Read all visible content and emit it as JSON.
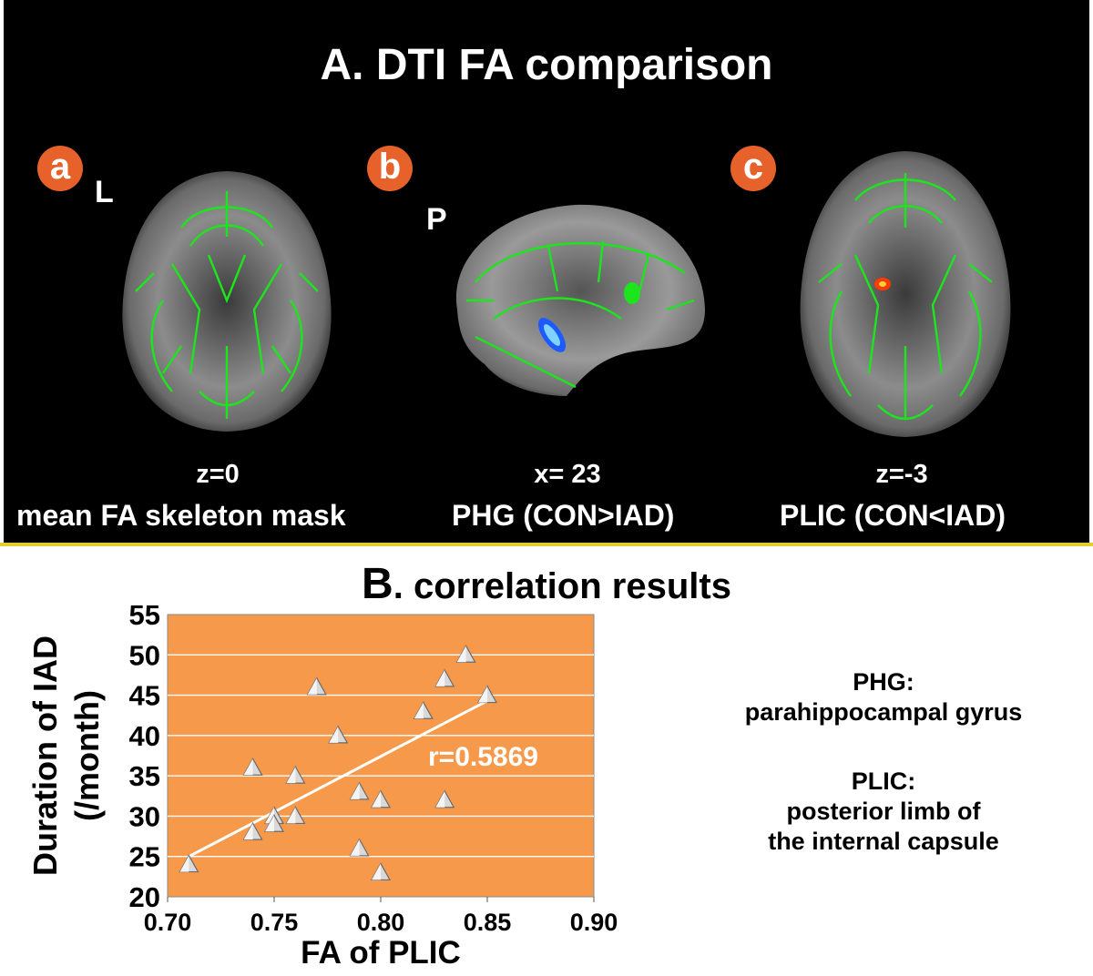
{
  "panel_a": {
    "title": "A. DTI FA comparison",
    "views": [
      {
        "badge": "a",
        "orientation": "L",
        "coordinate": "z=0",
        "caption": "mean FA skeleton mask"
      },
      {
        "badge": "b",
        "orientation": "P",
        "coordinate": "x= 23",
        "caption": "PHG (CON>IAD)"
      },
      {
        "badge": "c",
        "orientation": "",
        "coordinate": "z=-3",
        "caption": "PLIC (CON<IAD)"
      }
    ],
    "colors": {
      "background": "#000000",
      "skeleton": "#1de51d",
      "badge": "#e7622a",
      "cluster_blue": "#1e5bff",
      "cluster_red": "#ff3a00",
      "divider": "#e3cf2a"
    }
  },
  "panel_b": {
    "title_letter": "B",
    "title_rest": ". correlation results"
  },
  "chart_data": {
    "type": "scatter",
    "xlabel": "FA of PLIC",
    "ylabel_line1": "Duration of IAD",
    "ylabel_line2": "(/month)",
    "xlim": [
      0.7,
      0.9
    ],
    "ylim": [
      20,
      55
    ],
    "x_ticks": [
      "0.70",
      "0.75",
      "0.80",
      "0.85",
      "0.90"
    ],
    "y_ticks": [
      "20",
      "25",
      "30",
      "35",
      "40",
      "45",
      "50",
      "55"
    ],
    "grid": true,
    "background_color": "#f7994a",
    "points": [
      {
        "x": 0.71,
        "y": 24
      },
      {
        "x": 0.74,
        "y": 36
      },
      {
        "x": 0.74,
        "y": 28
      },
      {
        "x": 0.75,
        "y": 30
      },
      {
        "x": 0.75,
        "y": 29
      },
      {
        "x": 0.76,
        "y": 35
      },
      {
        "x": 0.76,
        "y": 30
      },
      {
        "x": 0.77,
        "y": 46
      },
      {
        "x": 0.78,
        "y": 40
      },
      {
        "x": 0.79,
        "y": 33
      },
      {
        "x": 0.79,
        "y": 26
      },
      {
        "x": 0.8,
        "y": 32
      },
      {
        "x": 0.8,
        "y": 23
      },
      {
        "x": 0.82,
        "y": 43
      },
      {
        "x": 0.83,
        "y": 47
      },
      {
        "x": 0.83,
        "y": 32
      },
      {
        "x": 0.84,
        "y": 50
      },
      {
        "x": 0.85,
        "y": 45
      }
    ],
    "trendline": {
      "x": [
        0.71,
        0.85
      ],
      "y": [
        25,
        44.3
      ]
    },
    "annotation": "r=0.5869"
  },
  "abbreviations": [
    {
      "term": "PHG:",
      "definition": "parahippocampal gyrus"
    },
    {
      "term": "PLIC:",
      "definition_line1": "posterior limb of",
      "definition_line2": "the internal capsule"
    }
  ]
}
